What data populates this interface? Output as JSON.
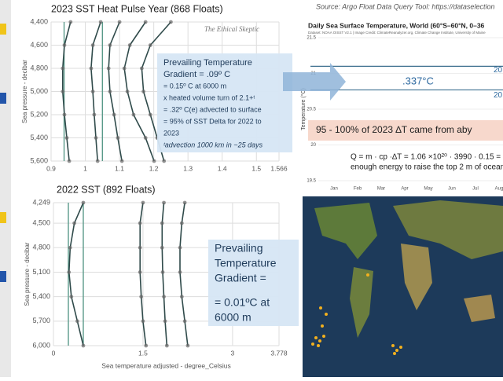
{
  "chart_data": [
    {
      "type": "profile",
      "title": "2023 SST Heat Pulse Year (868 Floats)",
      "y_label": "Sea pressure - decibar",
      "y": [
        4400,
        4600,
        4800,
        5000,
        5200,
        5400,
        5600
      ],
      "series": [
        {
          "color": "#2f4a4a",
          "values": [
            0.957,
            0.939,
            0.934,
            0.934,
            0.939,
            0.946,
            0.953
          ]
        },
        {
          "color": "#2f4a4a",
          "values": [
            1.045,
            1.022,
            1.017,
            1.022,
            1.026,
            1.031,
            1.036
          ]
        },
        {
          "color": "#2f4a4a",
          "values": [
            1.1,
            1.072,
            1.068,
            1.072,
            1.084,
            1.095,
            1.107
          ]
        },
        {
          "color": "#2f4a4a",
          "values": [
            1.176,
            1.13,
            1.114,
            1.123,
            1.141,
            1.176,
            1.201
          ]
        },
        {
          "color": "#2f4a4a",
          "values": [
            1.25,
            1.19,
            1.165,
            1.17,
            1.19,
            1.21,
            1.23
          ]
        }
      ],
      "vlines": [
        0.938,
        1.05
      ],
      "vline_color": "#5a9a8a",
      "xlim": [
        0.9,
        1.566
      ],
      "xticks": [
        0.9,
        1,
        1.1,
        1.2,
        1.3,
        1.4,
        1.5,
        1.566
      ],
      "ylim": [
        4400,
        5600
      ],
      "yticks": [
        {
          "value": 4400,
          "label": "4,400"
        },
        {
          "value": 4600,
          "label": "4,600"
        },
        {
          "value": 4800,
          "label": "4,800"
        },
        {
          "value": 5000,
          "label": "5,000"
        },
        {
          "value": 5200,
          "label": "5,200"
        },
        {
          "value": 5400,
          "label": "5,400"
        },
        {
          "value": 5600,
          "label": "5,600"
        }
      ],
      "grid": true,
      "watermark": "The Ethical Skeptic",
      "annotation": [
        "Prevailing Temperature",
        "Gradient = .09º C",
        "= 0.15º C at 6000 m",
        "x heated volume turn of 2.1+ᵗ",
        "= .32º C(e) advected to surface",
        "= 95% of SST Delta for 2022 to",
        "2023",
        "ᵗadvection 1000 km in ~25 days"
      ]
    },
    {
      "type": "daily",
      "source": "Source: Argo Float Data Query Tool: https://dataselection",
      "title": "Daily Sea Surface Temperature, World (60°S–60°N, 0–36",
      "subtitle": "Dataset: NOAA OISST V2.1 | Image Credit: ClimateReanalyzer.org, Climate Change Institute, University of Maine",
      "y_label": "Temperature (°C)",
      "categories": [
        "Jan",
        "Feb",
        "Mar",
        "Apr",
        "May",
        "Jun",
        "Jul",
        "Aug"
      ],
      "ylim": [
        19.5,
        21.5
      ],
      "yticks": [
        19.5,
        20,
        20.5,
        21,
        21.5
      ],
      "hlines": [
        21.1,
        20.77
      ],
      "hline_labels": [
        "20",
        "20"
      ],
      "delta_label": ".337°C",
      "callout": "95 - 100% of 2023 ∆T came from aby",
      "formula": [
        "Q = m · cp ·∆T = 1.06 ×10²⁰ · 3990 · 0.15 = 6.34×",
        "enough energy to raise the top 2 m of ocean 0.3"
      ]
    },
    {
      "type": "profile",
      "title": "2022 SST (892 Floats)",
      "y_label": "Sea pressure - decibar",
      "x_label": "Sea temperature adjusted - degree_Celsius",
      "y": [
        4249,
        4500,
        4800,
        5100,
        5400,
        5700,
        6000
      ],
      "series": [
        {
          "color": "#2f4a4a",
          "values": [
            0.5,
            0.35,
            0.28,
            0.26,
            0.3,
            0.4,
            0.5
          ]
        },
        {
          "color": "#2f4a4a",
          "values": [
            1.5,
            1.45,
            1.45,
            1.45,
            1.47,
            1.5,
            1.55
          ]
        },
        {
          "color": "#2f4a4a",
          "values": [
            1.85,
            1.82,
            1.82,
            1.83,
            1.85,
            1.87,
            1.9
          ]
        },
        {
          "color": "#2f4a4a",
          "values": [
            2.2,
            2.15,
            2.12,
            2.12,
            2.15,
            2.2,
            2.25
          ]
        }
      ],
      "vlines": [
        0.25,
        0.5
      ],
      "vline_color": "#5a9a8a",
      "xlim": [
        0,
        3.778
      ],
      "xticks": [
        0,
        1.5,
        3,
        3.778
      ],
      "ylim": [
        4249,
        6000
      ],
      "yticks": [
        {
          "value": 4249,
          "label": "4,249"
        },
        {
          "value": 4500,
          "label": "4,500"
        },
        {
          "value": 4800,
          "label": "4,800"
        },
        {
          "value": 5100,
          "label": "5,100"
        },
        {
          "value": 5400,
          "label": "5,400"
        },
        {
          "value": 5700,
          "label": "5,700"
        },
        {
          "value": 6000,
          "label": "6,000"
        }
      ],
      "grid": true,
      "annotation": [
        "Prevailing",
        "Temperature",
        "Gradient =",
        "= 0.01ºC at",
        "6000 m"
      ]
    }
  ]
}
